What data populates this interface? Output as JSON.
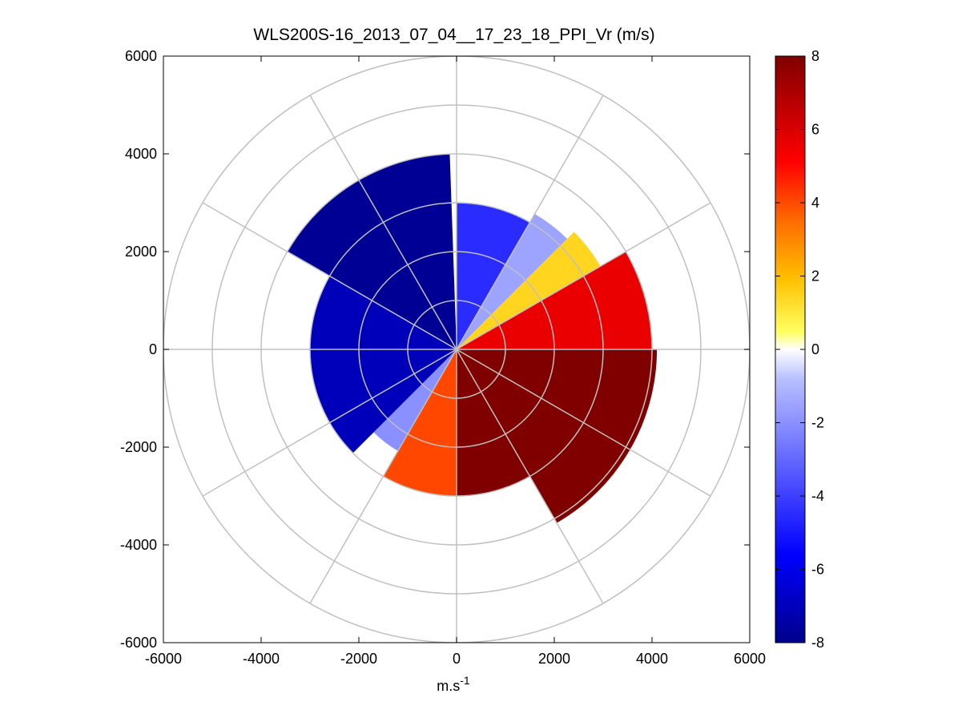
{
  "chart_data": {
    "type": "polar-scan",
    "title": "WLS200S-16_2013_07_04__17_23_18_PPI_Vr (m/s)",
    "xlabel": "m.s",
    "xlabel_exponent": "-1",
    "ylabel": "",
    "xlim": [
      -6000,
      6000
    ],
    "ylim": [
      -6000,
      6000
    ],
    "xticks": [
      -6000,
      -4000,
      -2000,
      0,
      2000,
      4000,
      6000
    ],
    "yticks": [
      -6000,
      -4000,
      -2000,
      0,
      2000,
      4000,
      6000
    ],
    "range_rings": [
      1000,
      2000,
      3000,
      4000,
      5000,
      6000
    ],
    "spoke_angles_deg": [
      0,
      30,
      60,
      90,
      120,
      150,
      180,
      210,
      240,
      270,
      300,
      330
    ],
    "colorbar": {
      "min": -8,
      "max": 8,
      "ticks": [
        -8,
        -6,
        -4,
        -2,
        0,
        2,
        4,
        6,
        8
      ],
      "colormap": "blue-white-yellow-red",
      "colors": [
        "#00008b",
        "#0000ff",
        "#dfe3ff",
        "#ffff00",
        "#ff8000",
        "#ff0000",
        "#800000"
      ]
    },
    "velocity_sectors": [
      {
        "az_start": 0,
        "az_end": 30,
        "max_range": 3000,
        "vr": -4.5
      },
      {
        "az_start": 30,
        "az_end": 45,
        "max_range": 3200,
        "vr": -1.5
      },
      {
        "az_start": 45,
        "az_end": 60,
        "max_range": 3400,
        "vr": 1.5
      },
      {
        "az_start": 60,
        "az_end": 90,
        "max_range": 4000,
        "vr": 5.5
      },
      {
        "az_start": 90,
        "az_end": 150,
        "max_range": 4100,
        "vr": 8
      },
      {
        "az_start": 150,
        "az_end": 180,
        "max_range": 3000,
        "vr": 8
      },
      {
        "az_start": 180,
        "az_end": 210,
        "max_range": 3000,
        "vr": 4
      },
      {
        "az_start": 210,
        "az_end": 225,
        "max_range": 2400,
        "vr": -2
      },
      {
        "az_start": 225,
        "az_end": 300,
        "max_range": 3000,
        "vr": -7
      },
      {
        "az_start": 300,
        "az_end": 358,
        "max_range": 4000,
        "vr": -7.8
      }
    ]
  }
}
